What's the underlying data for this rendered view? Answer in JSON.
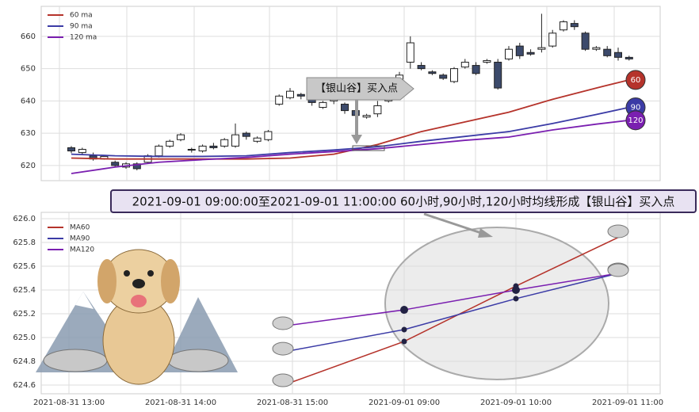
{
  "chart_data": [
    {
      "type": "candlestick",
      "open": [
        625.5,
        624,
        623,
        622,
        621,
        619.5,
        620.5,
        621,
        623,
        626,
        628,
        625,
        624.5,
        626,
        626,
        626,
        630,
        627.5,
        628,
        639,
        641,
        642,
        641,
        638,
        640,
        639,
        637,
        635,
        636,
        640,
        646,
        652,
        651,
        649,
        648,
        646,
        650.5,
        651,
        652,
        652,
        653,
        657,
        655,
        656,
        657,
        662,
        664,
        661,
        656,
        656,
        655,
        653.5
      ],
      "close": [
        624.5,
        625,
        622,
        622.8,
        620,
        620.5,
        619,
        623,
        626,
        627.5,
        629.5,
        624.8,
        626,
        625.5,
        628,
        629.5,
        629,
        628.5,
        630.5,
        641.5,
        643,
        641.5,
        639.5,
        639.5,
        641,
        637,
        635.5,
        635.5,
        638.5,
        644,
        648,
        658,
        650,
        648.5,
        647,
        650,
        652,
        648.5,
        652.5,
        644,
        656,
        654,
        654.5,
        656.5,
        661,
        664.5,
        663,
        656,
        656.5,
        654,
        653.5,
        653
      ],
      "low": [
        623.8,
        623.5,
        621.5,
        621.8,
        619.5,
        619,
        618.5,
        620.5,
        622.5,
        625.5,
        627.5,
        624,
        624,
        625,
        625.5,
        625.5,
        628,
        627,
        627.5,
        638.5,
        640.5,
        640.5,
        638.5,
        637.5,
        639,
        636,
        634,
        634.5,
        635,
        639.5,
        645.5,
        650,
        649.5,
        648,
        646.5,
        645.5,
        650,
        648,
        651.5,
        643.5,
        652.5,
        653,
        654,
        655,
        656.5,
        661.5,
        662,
        655.5,
        655.5,
        653.5,
        652.5,
        652.5
      ],
      "high": [
        626,
        625.5,
        624,
        623.2,
        621.5,
        621,
        621,
        623.5,
        626.5,
        628,
        630,
        625.5,
        626.5,
        627,
        628.5,
        633,
        630.5,
        629,
        631,
        642,
        644,
        642.5,
        641.5,
        640,
        641.5,
        639.5,
        638,
        636,
        640,
        645,
        649,
        660,
        652,
        649.5,
        648.5,
        650.5,
        653,
        652,
        653,
        653,
        657,
        658,
        656,
        667,
        662,
        665,
        665,
        661.5,
        657,
        657,
        656.5,
        654
      ],
      "up_color": "#ffffff",
      "down_color": "#3c4a6b",
      "series": [
        {
          "name": "60 ma",
          "color": "#b5332b",
          "badge": "60",
          "x": [
            0,
            4,
            8,
            12,
            16,
            20,
            24,
            28,
            32,
            36,
            40,
            44,
            48,
            51
          ],
          "values": [
            622.3,
            622,
            622,
            622,
            622,
            622.3,
            623.5,
            626.5,
            630.5,
            633.5,
            636.5,
            640.5,
            644,
            646.5
          ]
        },
        {
          "name": "90 ma",
          "color": "#3b3ba6",
          "badge": "90",
          "x": [
            0,
            4,
            8,
            12,
            16,
            20,
            24,
            28,
            32,
            36,
            40,
            44,
            48,
            51
          ],
          "values": [
            623.5,
            623,
            622.8,
            622.8,
            623,
            624,
            624.8,
            625.8,
            627.5,
            629,
            630.5,
            633,
            635.8,
            638
          ]
        },
        {
          "name": "120 ma",
          "color": "#7a1fb0",
          "badge": "120",
          "x": [
            0,
            4,
            8,
            12,
            16,
            20,
            24,
            28,
            32,
            36,
            40,
            44,
            48,
            51
          ],
          "values": [
            617.5,
            619.5,
            621,
            621.8,
            622.5,
            623.5,
            624.3,
            625.2,
            626.5,
            627.8,
            628.8,
            631,
            632.8,
            634
          ]
        }
      ],
      "ylim": [
        615.3,
        669.3
      ],
      "yticks": [
        620,
        630,
        640,
        650,
        660
      ],
      "grid": true,
      "annotation": "【银山谷】买入点"
    },
    {
      "type": "line",
      "title": "2021-09-01 09:00:00至2021-09-01 11:00:00 60小时,90小时,120小时均线形成【银山谷】买入点",
      "categories": [
        "2021-08-31 13:00",
        "2021-08-31 14:00",
        "2021-08-31 15:00",
        "2021-09-01 09:00",
        "2021-09-01 10:00",
        "2021-09-01 11:00"
      ],
      "series": [
        {
          "name": "MA60",
          "color": "#b5332b",
          "values": [
            null,
            null,
            624.627,
            624.967,
            625.433,
            625.88
          ]
        },
        {
          "name": "MA90",
          "color": "#3b3ba6",
          "values": [
            null,
            null,
            624.893,
            625.067,
            625.327,
            625.56
          ]
        },
        {
          "name": "MA120",
          "color": "#7a1fb0",
          "values": [
            null,
            null,
            625.107,
            625.233,
            625.4,
            625.553
          ]
        }
      ],
      "ylim": [
        624.527,
        626.053
      ],
      "yticks": [
        624.6,
        624.8,
        {
          "value": 625,
          "label": "625.0"
        },
        625.2,
        625.4,
        625.6,
        625.8,
        {
          "value": 626,
          "label": "626.0"
        }
      ],
      "grid": true
    }
  ]
}
